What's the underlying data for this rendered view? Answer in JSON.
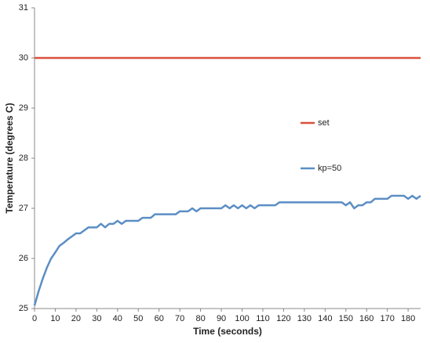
{
  "chart_data": {
    "type": "line",
    "x_label": "Time (seconds)",
    "y_label": "Temperature (degrees C)",
    "xlim": [
      0,
      186
    ],
    "ylim": [
      25,
      31
    ],
    "xticks": [
      0,
      10,
      20,
      30,
      40,
      50,
      60,
      70,
      80,
      90,
      100,
      110,
      120,
      130,
      140,
      150,
      160,
      170,
      180
    ],
    "yticks": [
      25,
      26,
      27,
      28,
      29,
      30,
      31
    ],
    "legend": "right",
    "series": [
      {
        "name": "set",
        "color": "#d9503f",
        "x": [
          0,
          186
        ],
        "values": [
          30,
          30
        ]
      },
      {
        "name": "kp=50",
        "color": "#5b8ec4",
        "x": [
          0,
          2,
          4,
          6,
          8,
          10,
          12,
          14,
          16,
          18,
          20,
          22,
          24,
          26,
          28,
          30,
          32,
          34,
          36,
          38,
          40,
          42,
          44,
          46,
          48,
          50,
          52,
          54,
          56,
          58,
          60,
          62,
          64,
          66,
          68,
          70,
          72,
          74,
          76,
          78,
          80,
          82,
          84,
          86,
          88,
          90,
          92,
          94,
          96,
          98,
          100,
          102,
          104,
          106,
          108,
          110,
          112,
          114,
          116,
          118,
          120,
          122,
          124,
          126,
          128,
          130,
          132,
          134,
          136,
          138,
          140,
          142,
          144,
          146,
          148,
          150,
          152,
          154,
          156,
          158,
          160,
          162,
          164,
          166,
          168,
          170,
          172,
          174,
          176,
          178,
          180,
          182,
          184,
          186
        ],
        "values": [
          25.06,
          25.35,
          25.6,
          25.82,
          26.0,
          26.12,
          26.25,
          26.31,
          26.38,
          26.44,
          26.5,
          26.5,
          26.56,
          26.62,
          26.62,
          26.62,
          26.69,
          26.62,
          26.69,
          26.69,
          26.75,
          26.69,
          26.75,
          26.75,
          26.75,
          26.75,
          26.81,
          26.81,
          26.81,
          26.88,
          26.88,
          26.88,
          26.88,
          26.88,
          26.88,
          26.94,
          26.94,
          26.94,
          27.0,
          26.94,
          27.0,
          27.0,
          27.0,
          27.0,
          27.0,
          27.0,
          27.06,
          27.0,
          27.06,
          27.0,
          27.06,
          27.0,
          27.06,
          27.0,
          27.06,
          27.06,
          27.06,
          27.06,
          27.06,
          27.12,
          27.12,
          27.12,
          27.12,
          27.12,
          27.12,
          27.12,
          27.12,
          27.12,
          27.12,
          27.12,
          27.12,
          27.12,
          27.12,
          27.12,
          27.12,
          27.06,
          27.12,
          27.0,
          27.06,
          27.06,
          27.12,
          27.12,
          27.19,
          27.19,
          27.19,
          27.19,
          27.25,
          27.25,
          27.25,
          27.25,
          27.19,
          27.25,
          27.19,
          27.25
        ]
      }
    ]
  }
}
